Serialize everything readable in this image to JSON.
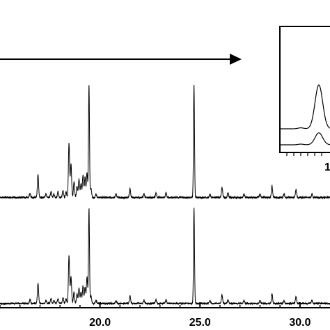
{
  "chart_data": [
    {
      "type": "line",
      "title": "",
      "xlabel": "",
      "ylabel": "",
      "xlim": [
        15.0,
        31.5
      ],
      "ylim": [
        0,
        100
      ],
      "x_ticks": [
        20.0,
        25.0,
        30.0
      ],
      "x_tick_labels": [
        "20.0",
        "25.0",
        "30.0"
      ],
      "grid": false,
      "legend": "none",
      "line_color": "#000000",
      "annotation": "arrow",
      "series": [
        {
          "baseline": 0,
          "peaks": [
            {
              "x": 16.5,
              "y": 4
            },
            {
              "x": 16.9,
              "y": 20
            },
            {
              "x": 17.3,
              "y": 3
            },
            {
              "x": 17.55,
              "y": 5
            },
            {
              "x": 17.7,
              "y": 3
            },
            {
              "x": 17.9,
              "y": 5
            },
            {
              "x": 18.15,
              "y": 6
            },
            {
              "x": 18.3,
              "y": 5
            },
            {
              "x": 18.45,
              "y": 48
            },
            {
              "x": 18.55,
              "y": 30
            },
            {
              "x": 18.7,
              "y": 14
            },
            {
              "x": 18.85,
              "y": 10
            },
            {
              "x": 18.95,
              "y": 16
            },
            {
              "x": 19.05,
              "y": 12
            },
            {
              "x": 19.15,
              "y": 20
            },
            {
              "x": 19.25,
              "y": 18
            },
            {
              "x": 19.35,
              "y": 22
            },
            {
              "x": 19.45,
              "y": 100
            },
            {
              "x": 19.55,
              "y": 8
            },
            {
              "x": 19.8,
              "y": 3
            },
            {
              "x": 20.8,
              "y": 3
            },
            {
              "x": 21.5,
              "y": 8
            },
            {
              "x": 22.2,
              "y": 3
            },
            {
              "x": 22.8,
              "y": 4
            },
            {
              "x": 23.3,
              "y": 4
            },
            {
              "x": 24.7,
              "y": 100
            },
            {
              "x": 25.5,
              "y": 3
            },
            {
              "x": 26.1,
              "y": 9
            },
            {
              "x": 26.4,
              "y": 4
            },
            {
              "x": 27.2,
              "y": 3
            },
            {
              "x": 28.0,
              "y": 3
            },
            {
              "x": 28.6,
              "y": 10
            },
            {
              "x": 29.2,
              "y": 3
            },
            {
              "x": 29.8,
              "y": 7
            },
            {
              "x": 30.6,
              "y": 3
            }
          ]
        },
        {
          "baseline": 0,
          "peaks": [
            {
              "x": 16.5,
              "y": 4
            },
            {
              "x": 16.9,
              "y": 21
            },
            {
              "x": 17.3,
              "y": 3
            },
            {
              "x": 17.55,
              "y": 5
            },
            {
              "x": 17.7,
              "y": 3
            },
            {
              "x": 17.9,
              "y": 5
            },
            {
              "x": 18.15,
              "y": 6
            },
            {
              "x": 18.3,
              "y": 5
            },
            {
              "x": 18.45,
              "y": 50
            },
            {
              "x": 18.55,
              "y": 28
            },
            {
              "x": 18.7,
              "y": 12
            },
            {
              "x": 18.85,
              "y": 10
            },
            {
              "x": 18.95,
              "y": 16
            },
            {
              "x": 19.05,
              "y": 12
            },
            {
              "x": 19.15,
              "y": 18
            },
            {
              "x": 19.25,
              "y": 17
            },
            {
              "x": 19.35,
              "y": 28
            },
            {
              "x": 19.45,
              "y": 100
            },
            {
              "x": 19.55,
              "y": 8
            },
            {
              "x": 19.8,
              "y": 3
            },
            {
              "x": 20.8,
              "y": 3
            },
            {
              "x": 21.5,
              "y": 8
            },
            {
              "x": 22.2,
              "y": 3
            },
            {
              "x": 22.8,
              "y": 4
            },
            {
              "x": 23.3,
              "y": 4
            },
            {
              "x": 24.7,
              "y": 100
            },
            {
              "x": 25.5,
              "y": 3
            },
            {
              "x": 26.1,
              "y": 9
            },
            {
              "x": 26.4,
              "y": 4
            },
            {
              "x": 27.2,
              "y": 3
            },
            {
              "x": 28.0,
              "y": 3
            },
            {
              "x": 28.6,
              "y": 10
            },
            {
              "x": 29.2,
              "y": 3
            },
            {
              "x": 29.8,
              "y": 7
            },
            {
              "x": 30.6,
              "y": 3
            }
          ]
        }
      ]
    },
    {
      "type": "line",
      "title": "",
      "xlabel": "",
      "ylabel": "",
      "x_tick_labels": [
        "1"
      ],
      "grid": false,
      "legend": "none",
      "series": [
        {
          "baseline": 0,
          "peak_height": 90
        },
        {
          "baseline": 0,
          "peak_height": 35
        }
      ]
    }
  ]
}
